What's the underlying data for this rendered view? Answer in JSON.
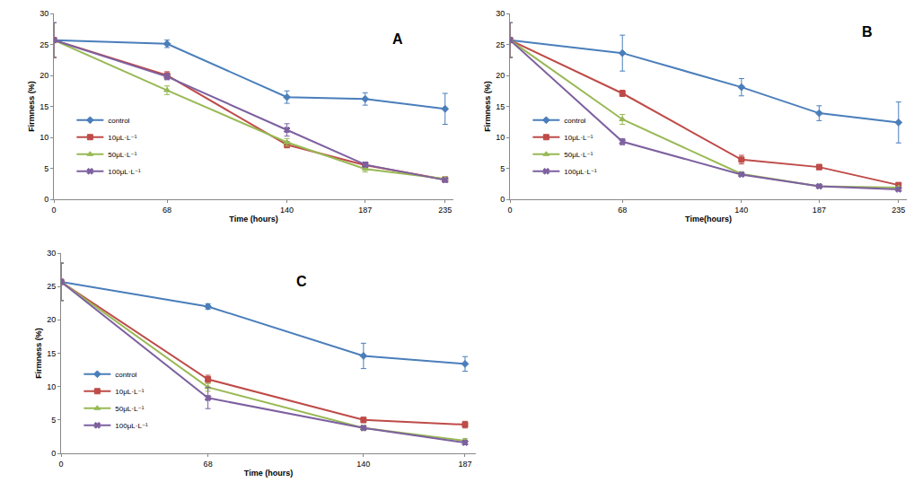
{
  "chart_data": [
    {
      "type": "line",
      "title": "A",
      "xlabel": "Time (hours)",
      "ylabel": "Firmness (%)",
      "x": [
        0,
        68,
        140,
        187,
        235
      ],
      "xlim": [
        0,
        240
      ],
      "xticks": [
        0,
        68,
        140,
        187,
        235
      ],
      "ylim": [
        0,
        30
      ],
      "yticks": [
        0,
        5,
        10,
        15,
        20,
        25,
        30
      ],
      "grid": false,
      "legend": "lower left",
      "series": [
        {
          "name": "control",
          "color": "#4a7ebb",
          "marker": "diamond",
          "values": [
            25.7,
            25.1,
            16.5,
            16.2,
            14.6
          ],
          "errors": [
            2.8,
            0.6,
            1.0,
            1.0,
            2.5
          ]
        },
        {
          "name": "10μL·L⁻¹",
          "color": "#be4b48",
          "marker": "square",
          "values": [
            25.7,
            20.0,
            8.8,
            5.5,
            3.2
          ],
          "errors": [
            2.8,
            0.6,
            0.5,
            0.4,
            0.3
          ]
        },
        {
          "name": "50μL·L⁻¹",
          "color": "#98b954",
          "marker": "triangle-up",
          "values": [
            25.7,
            17.6,
            9.2,
            4.9,
            3.3
          ],
          "errors": [
            2.8,
            0.7,
            0.6,
            0.5,
            0.3
          ]
        },
        {
          "name": "100μL·L⁻¹",
          "color": "#7d60a0",
          "marker": "x",
          "values": [
            25.7,
            19.8,
            11.2,
            5.6,
            3.1
          ],
          "errors": [
            2.8,
            0.5,
            1.0,
            0.4,
            0.3
          ]
        }
      ]
    },
    {
      "type": "line",
      "title": "B",
      "xlabel": "Time(hours)",
      "ylabel": "Firmness (%)",
      "x": [
        0,
        68,
        140,
        187,
        235
      ],
      "xlim": [
        0,
        240
      ],
      "xticks": [
        0,
        68,
        140,
        187,
        235
      ],
      "ylim": [
        0,
        30
      ],
      "yticks": [
        0,
        5,
        10,
        15,
        20,
        25,
        30
      ],
      "grid": false,
      "legend": "lower left",
      "series": [
        {
          "name": "control",
          "color": "#4a7ebb",
          "marker": "diamond",
          "values": [
            25.7,
            23.6,
            18.1,
            13.9,
            12.4
          ],
          "errors": [
            2.8,
            2.9,
            1.4,
            1.2,
            3.3
          ]
        },
        {
          "name": "10μL·L⁻¹",
          "color": "#be4b48",
          "marker": "square",
          "values": [
            25.7,
            17.1,
            6.4,
            5.2,
            2.3
          ],
          "errors": [
            2.8,
            0.5,
            0.7,
            0.4,
            0.3
          ]
        },
        {
          "name": "50μL·L⁻¹",
          "color": "#98b954",
          "marker": "triangle-up",
          "values": [
            25.7,
            12.9,
            4.1,
            2.1,
            1.9
          ],
          "errors": [
            2.8,
            0.8,
            0.3,
            0.2,
            0.2
          ]
        },
        {
          "name": "100μL·L⁻¹",
          "color": "#7d60a0",
          "marker": "x",
          "values": [
            25.7,
            9.3,
            4.0,
            2.1,
            1.6
          ],
          "errors": [
            2.8,
            0.5,
            0.3,
            0.2,
            0.2
          ]
        }
      ]
    },
    {
      "type": "line",
      "title": "C",
      "xlabel": "Time (hours)",
      "ylabel": "Firmness (%)",
      "x": [
        0,
        68,
        140,
        187
      ],
      "xlim": [
        0,
        192
      ],
      "xticks": [
        0,
        68,
        140,
        187
      ],
      "ylim": [
        0,
        30
      ],
      "yticks": [
        0,
        5,
        10,
        15,
        20,
        25,
        30
      ],
      "grid": false,
      "legend": "lower left",
      "series": [
        {
          "name": "control",
          "color": "#4a7ebb",
          "marker": "diamond",
          "values": [
            25.7,
            22.0,
            14.6,
            13.4
          ],
          "errors": [
            2.8,
            0.4,
            1.9,
            1.1
          ]
        },
        {
          "name": "10μL·L⁻¹",
          "color": "#be4b48",
          "marker": "square",
          "values": [
            25.7,
            11.1,
            5.0,
            4.3
          ],
          "errors": [
            2.8,
            0.6,
            0.4,
            0.5
          ]
        },
        {
          "name": "50μL·L⁻¹",
          "color": "#98b954",
          "marker": "triangle-up",
          "values": [
            25.7,
            9.9,
            3.8,
            1.9
          ],
          "errors": [
            2.8,
            0.6,
            0.4,
            0.3
          ]
        },
        {
          "name": "100μL·L⁻¹",
          "color": "#7d60a0",
          "marker": "x",
          "values": [
            25.7,
            8.3,
            3.8,
            1.6
          ],
          "errors": [
            2.8,
            1.6,
            0.3,
            0.3
          ]
        }
      ]
    }
  ]
}
